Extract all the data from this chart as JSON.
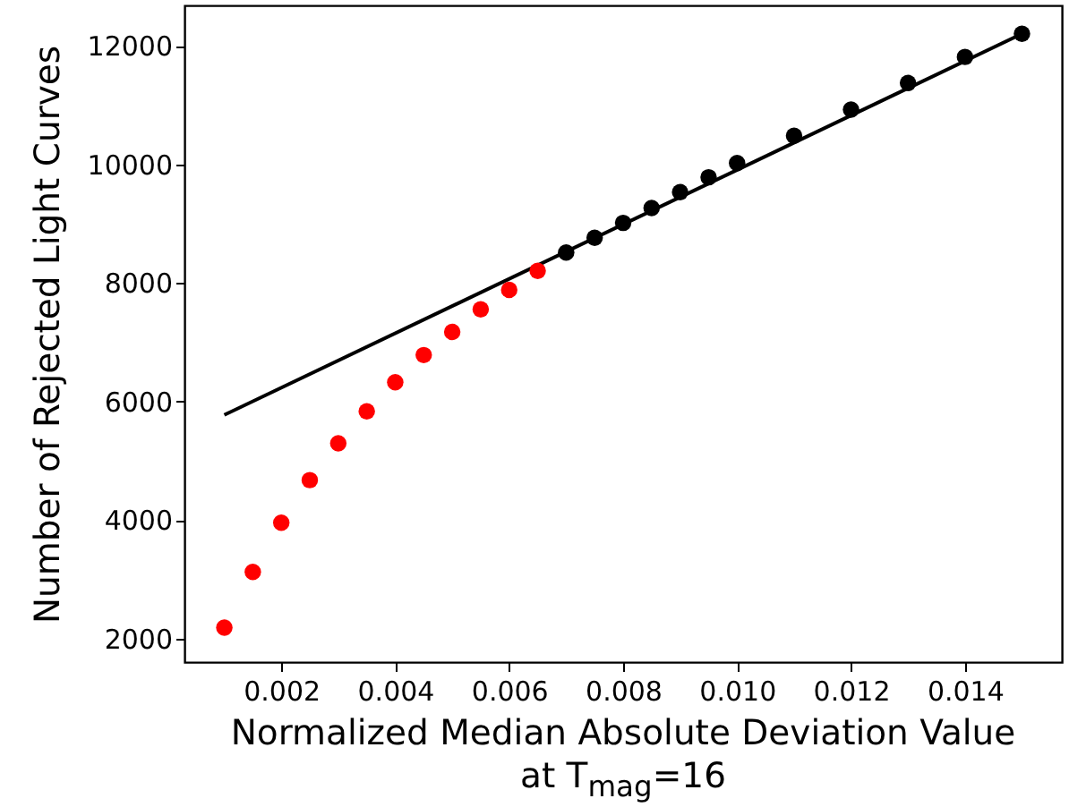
{
  "chart_data": {
    "type": "scatter",
    "xlabel": "Normalized Median Absolute Deviation Value\nat T$_{mag}$=16",
    "ylabel": "Number of Rejected Light Curves",
    "xlim": [
      0.0003,
      0.0157
    ],
    "xticks": [
      0.002,
      0.004,
      0.006,
      0.008,
      {
        "value": 0.01,
        "label": "0.010"
      },
      0.012,
      0.014
    ],
    "ylim": [
      1600,
      12680
    ],
    "yticks": [
      2000,
      4000,
      6000,
      8000,
      10000,
      12000
    ],
    "marker": "circle",
    "grid": false,
    "series": [
      {
        "type": "line",
        "marker": "none",
        "color": "#000000",
        "x": [
          0.001,
          0.015
        ],
        "values": [
          5770,
          12200
        ]
      },
      {
        "color": "#ff0000",
        "x": [
          0.001,
          0.0015,
          0.002,
          0.0025,
          0.003,
          0.0035,
          0.004,
          0.0045,
          0.005,
          0.0055,
          0.006,
          0.0065
        ],
        "values": [
          2180,
          3120,
          3950,
          4670,
          5290,
          5830,
          6320,
          6780,
          7170,
          7550,
          7880,
          8200
        ]
      },
      {
        "color": "#000000",
        "x": [
          0.007,
          0.0075,
          0.008,
          0.0085,
          0.009,
          0.0095,
          0.01,
          0.011,
          0.012,
          0.013,
          0.014,
          0.015
        ],
        "values": [
          8510,
          8760,
          9010,
          9260,
          9530,
          9780,
          10020,
          10480,
          10920,
          11370,
          11810,
          12200
        ]
      }
    ]
  }
}
